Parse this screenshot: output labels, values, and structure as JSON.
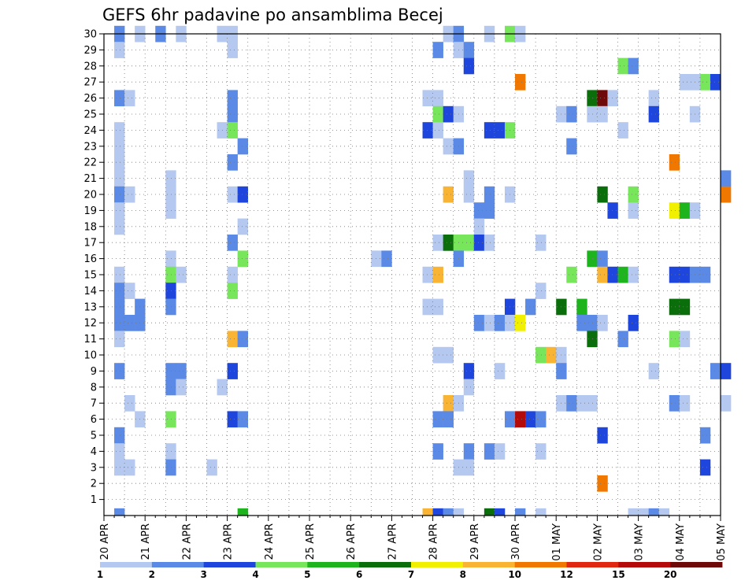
{
  "chart_data": {
    "type": "heatmap",
    "title": "GEFS 6hr padavine po ansamblima Becej",
    "x_tick_labels": [
      "20 APR",
      "21 APR",
      "22 APR",
      "23 APR",
      "24 APR",
      "25 APR",
      "26 APR",
      "27 APR",
      "28 APR",
      "29 APR",
      "30 APR",
      "01 MAY",
      "02 MAY",
      "03 MAY",
      "04 MAY",
      "05 MAY"
    ],
    "y_tick_labels": [
      "1",
      "2",
      "3",
      "4",
      "5",
      "6",
      "7",
      "8",
      "9",
      "10",
      "11",
      "12",
      "13",
      "14",
      "15",
      "16",
      "17",
      "18",
      "19",
      "20",
      "21",
      "22",
      "23",
      "24",
      "25",
      "26",
      "27",
      "28",
      "29",
      "30"
    ],
    "x_range_days": [
      0,
      15
    ],
    "y_range": [
      0,
      30
    ],
    "grid": true,
    "legend": {
      "placement": "bottom",
      "labels": [
        "1",
        "2",
        "3",
        "4",
        "5",
        "6",
        "7",
        "8",
        "10",
        "12",
        "15",
        "20"
      ],
      "colors": [
        "#b4c8f0",
        "#5a8ae6",
        "#1e46dc",
        "#78e65a",
        "#1eb41e",
        "#0a6e0a",
        "#f0f000",
        "#f8b432",
        "#f07800",
        "#e02810",
        "#b40a0a",
        "#6e0a0a"
      ]
    },
    "cells": [
      [
        30,
        0.25,
        2
      ],
      [
        30,
        0.75,
        1
      ],
      [
        30,
        1.25,
        2
      ],
      [
        30,
        1.75,
        1
      ],
      [
        30,
        2.75,
        1
      ],
      [
        30,
        3.0,
        1
      ],
      [
        30,
        8.25,
        1
      ],
      [
        30,
        8.5,
        2
      ],
      [
        30,
        9.25,
        1
      ],
      [
        30,
        9.75,
        4
      ],
      [
        30,
        10.0,
        1
      ],
      [
        29,
        0.25,
        1
      ],
      [
        29,
        3.0,
        1
      ],
      [
        29,
        8.0,
        2
      ],
      [
        29,
        8.5,
        1
      ],
      [
        29,
        8.75,
        2
      ],
      [
        28,
        8.75,
        3
      ],
      [
        28,
        12.5,
        4
      ],
      [
        28,
        12.75,
        2
      ],
      [
        27,
        10.0,
        9
      ],
      [
        27,
        14.0,
        1
      ],
      [
        27,
        14.25,
        1
      ],
      [
        27,
        14.5,
        4
      ],
      [
        27,
        14.75,
        3
      ],
      [
        26,
        0.25,
        2
      ],
      [
        26,
        0.5,
        1
      ],
      [
        26,
        3.0,
        2
      ],
      [
        26,
        7.75,
        1
      ],
      [
        26,
        8.0,
        1
      ],
      [
        26,
        11.75,
        6
      ],
      [
        26,
        12.0,
        12
      ],
      [
        26,
        12.25,
        1
      ],
      [
        26,
        13.25,
        1
      ],
      [
        25,
        3.0,
        2
      ],
      [
        25,
        8.0,
        4
      ],
      [
        25,
        8.25,
        3
      ],
      [
        25,
        8.5,
        1
      ],
      [
        25,
        11.0,
        1
      ],
      [
        25,
        11.25,
        2
      ],
      [
        25,
        11.75,
        1
      ],
      [
        25,
        12.0,
        1
      ],
      [
        25,
        13.25,
        3
      ],
      [
        25,
        14.25,
        1
      ],
      [
        24,
        0.25,
        1
      ],
      [
        24,
        2.75,
        1
      ],
      [
        24,
        3.0,
        4
      ],
      [
        24,
        7.75,
        3
      ],
      [
        24,
        8.0,
        1
      ],
      [
        24,
        9.25,
        3
      ],
      [
        24,
        9.5,
        3
      ],
      [
        24,
        9.75,
        4
      ],
      [
        24,
        12.5,
        1
      ],
      [
        23,
        0.25,
        1
      ],
      [
        23,
        3.25,
        2
      ],
      [
        23,
        8.25,
        1
      ],
      [
        23,
        8.5,
        2
      ],
      [
        23,
        11.25,
        2
      ],
      [
        22,
        0.25,
        1
      ],
      [
        22,
        3.0,
        2
      ],
      [
        22,
        13.75,
        9
      ],
      [
        21,
        0.25,
        1
      ],
      [
        21,
        1.5,
        1
      ],
      [
        21,
        8.75,
        1
      ],
      [
        21,
        15.0,
        2
      ],
      [
        20,
        0.25,
        2
      ],
      [
        20,
        0.5,
        1
      ],
      [
        20,
        1.5,
        1
      ],
      [
        20,
        3.0,
        1
      ],
      [
        20,
        3.25,
        3
      ],
      [
        20,
        8.25,
        8
      ],
      [
        20,
        8.75,
        1
      ],
      [
        20,
        9.25,
        2
      ],
      [
        20,
        9.75,
        1
      ],
      [
        20,
        12.0,
        6
      ],
      [
        20,
        12.75,
        4
      ],
      [
        20,
        15.0,
        9
      ],
      [
        19,
        0.25,
        1
      ],
      [
        19,
        1.5,
        1
      ],
      [
        19,
        9.0,
        2
      ],
      [
        19,
        9.25,
        2
      ],
      [
        19,
        12.25,
        3
      ],
      [
        19,
        12.75,
        1
      ],
      [
        19,
        13.75,
        7
      ],
      [
        19,
        14.0,
        5
      ],
      [
        19,
        14.25,
        1
      ],
      [
        18,
        0.25,
        1
      ],
      [
        18,
        3.25,
        1
      ],
      [
        18,
        9.0,
        1
      ],
      [
        17,
        3.0,
        2
      ],
      [
        17,
        8.0,
        1
      ],
      [
        17,
        8.25,
        6
      ],
      [
        17,
        8.5,
        4
      ],
      [
        17,
        8.75,
        4
      ],
      [
        17,
        9.0,
        3
      ],
      [
        17,
        9.25,
        1
      ],
      [
        17,
        10.5,
        1
      ],
      [
        16,
        1.5,
        1
      ],
      [
        16,
        3.25,
        4
      ],
      [
        16,
        6.5,
        1
      ],
      [
        16,
        6.75,
        2
      ],
      [
        16,
        8.5,
        2
      ],
      [
        16,
        11.75,
        5
      ],
      [
        16,
        12.0,
        2
      ],
      [
        15,
        0.25,
        1
      ],
      [
        15,
        1.5,
        4
      ],
      [
        15,
        1.75,
        1
      ],
      [
        15,
        3.0,
        1
      ],
      [
        15,
        7.75,
        1
      ],
      [
        15,
        8.0,
        8
      ],
      [
        15,
        11.25,
        4
      ],
      [
        15,
        12.0,
        8
      ],
      [
        15,
        12.25,
        3
      ],
      [
        15,
        12.5,
        5
      ],
      [
        15,
        12.75,
        1
      ],
      [
        15,
        13.75,
        3
      ],
      [
        15,
        14.0,
        3
      ],
      [
        15,
        14.25,
        2
      ],
      [
        15,
        14.5,
        2
      ],
      [
        14,
        0.25,
        2
      ],
      [
        14,
        0.5,
        1
      ],
      [
        14,
        1.5,
        3
      ],
      [
        14,
        3.0,
        4
      ],
      [
        14,
        10.5,
        1
      ],
      [
        13,
        0.25,
        2
      ],
      [
        13,
        0.75,
        2
      ],
      [
        13,
        1.5,
        2
      ],
      [
        13,
        7.75,
        1
      ],
      [
        13,
        8.0,
        1
      ],
      [
        13,
        9.75,
        3
      ],
      [
        13,
        10.25,
        2
      ],
      [
        13,
        11.0,
        6
      ],
      [
        13,
        11.5,
        5
      ],
      [
        13,
        13.75,
        6
      ],
      [
        13,
        14.0,
        6
      ],
      [
        12,
        0.25,
        2
      ],
      [
        12,
        0.5,
        2
      ],
      [
        12,
        0.75,
        2
      ],
      [
        12,
        9.0,
        2
      ],
      [
        12,
        9.25,
        1
      ],
      [
        12,
        9.5,
        2
      ],
      [
        12,
        9.75,
        1
      ],
      [
        12,
        10.0,
        7
      ],
      [
        12,
        11.5,
        2
      ],
      [
        12,
        11.75,
        2
      ],
      [
        12,
        12.0,
        1
      ],
      [
        12,
        12.75,
        3
      ],
      [
        11,
        0.25,
        1
      ],
      [
        11,
        3.0,
        8
      ],
      [
        11,
        3.25,
        2
      ],
      [
        11,
        11.75,
        6
      ],
      [
        11,
        12.5,
        2
      ],
      [
        11,
        13.75,
        4
      ],
      [
        11,
        14.0,
        1
      ],
      [
        10,
        8.0,
        1
      ],
      [
        10,
        8.25,
        1
      ],
      [
        10,
        10.5,
        4
      ],
      [
        10,
        10.75,
        8
      ],
      [
        10,
        11.0,
        1
      ],
      [
        9,
        0.25,
        2
      ],
      [
        9,
        1.5,
        2
      ],
      [
        9,
        1.75,
        2
      ],
      [
        9,
        3.0,
        3
      ],
      [
        9,
        8.75,
        3
      ],
      [
        9,
        9.5,
        1
      ],
      [
        9,
        11.0,
        2
      ],
      [
        9,
        13.25,
        1
      ],
      [
        9,
        14.75,
        2
      ],
      [
        9,
        15.0,
        3
      ],
      [
        8,
        1.5,
        2
      ],
      [
        8,
        1.75,
        1
      ],
      [
        8,
        2.75,
        1
      ],
      [
        8,
        8.75,
        1
      ],
      [
        7,
        0.5,
        1
      ],
      [
        7,
        8.25,
        8
      ],
      [
        7,
        8.5,
        1
      ],
      [
        7,
        11.0,
        1
      ],
      [
        7,
        11.25,
        2
      ],
      [
        7,
        11.5,
        1
      ],
      [
        7,
        11.75,
        1
      ],
      [
        7,
        13.75,
        2
      ],
      [
        7,
        14.0,
        1
      ],
      [
        7,
        15.0,
        1
      ],
      [
        6,
        0.75,
        1
      ],
      [
        6,
        1.5,
        4
      ],
      [
        6,
        3.0,
        3
      ],
      [
        6,
        3.25,
        2
      ],
      [
        6,
        8.0,
        2
      ],
      [
        6,
        8.25,
        2
      ],
      [
        6,
        9.75,
        2
      ],
      [
        6,
        10.0,
        11
      ],
      [
        6,
        10.25,
        3
      ],
      [
        6,
        10.5,
        2
      ],
      [
        5,
        0.25,
        2
      ],
      [
        5,
        12.0,
        3
      ],
      [
        5,
        14.5,
        2
      ],
      [
        4,
        0.25,
        1
      ],
      [
        4,
        1.5,
        1
      ],
      [
        4,
        8.0,
        2
      ],
      [
        4,
        8.75,
        2
      ],
      [
        4,
        9.25,
        2
      ],
      [
        4,
        9.5,
        1
      ],
      [
        4,
        10.5,
        1
      ],
      [
        3,
        0.25,
        1
      ],
      [
        3,
        0.5,
        1
      ],
      [
        3,
        1.5,
        2
      ],
      [
        3,
        2.5,
        1
      ],
      [
        3,
        8.5,
        1
      ],
      [
        3,
        8.75,
        1
      ],
      [
        3,
        14.5,
        3
      ],
      [
        2,
        12.0,
        9
      ],
      [
        0,
        0.25,
        2
      ],
      [
        0,
        3.25,
        5
      ],
      [
        0,
        7.75,
        8
      ],
      [
        0,
        8.0,
        3
      ],
      [
        0,
        8.25,
        2
      ],
      [
        0,
        8.5,
        1
      ],
      [
        0,
        9.25,
        6
      ],
      [
        0,
        9.5,
        3
      ],
      [
        0,
        10.0,
        2
      ],
      [
        0,
        10.5,
        1
      ],
      [
        0,
        12.75,
        1
      ],
      [
        0,
        13.0,
        1
      ],
      [
        0,
        13.25,
        2
      ],
      [
        0,
        13.5,
        1
      ]
    ]
  }
}
